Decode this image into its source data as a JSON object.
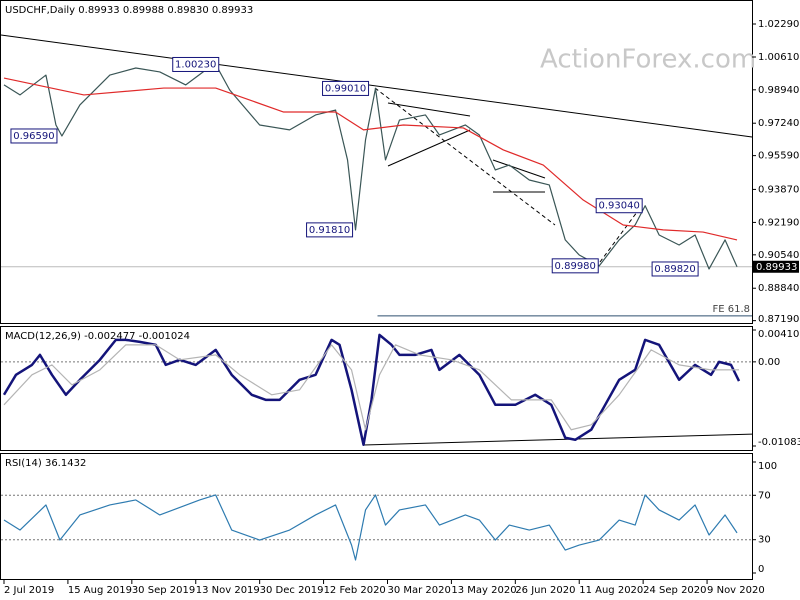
{
  "chart_data": [
    {
      "type": "line",
      "header": "USDCHF,Daily  0.89933 0.89988 0.89830 0.89933",
      "watermark": "ActionForex.com",
      "xlim": [
        -1.5,
        374.5
      ],
      "ylim": [
        0.8707,
        1.0341
      ],
      "yticks": [
        {
          "value": 1.0229,
          "label": "1.02290"
        },
        {
          "value": 1.0061,
          "label": "1.00610"
        },
        {
          "value": 0.9894,
          "label": "0.98940"
        },
        {
          "value": 0.9724,
          "label": "0.97240"
        },
        {
          "value": 0.9559,
          "label": "0.95590"
        },
        {
          "value": 0.9387,
          "label": "0.93870"
        },
        {
          "value": 0.9219,
          "label": "0.92190"
        },
        {
          "value": 0.9054,
          "label": "0.90540"
        },
        {
          "value": 0.8884,
          "label": "0.88840"
        },
        {
          "value": 0.8719,
          "label": "0.87190"
        }
      ],
      "series": [
        {
          "color": "#3a5656",
          "x": [
            0,
            8,
            21,
            26,
            29,
            38,
            53,
            66,
            78,
            91,
            101,
            106,
            113,
            128,
            143,
            156,
            166,
            172,
            176,
            181,
            186,
            191,
            198,
            211,
            218,
            231,
            238,
            246,
            253,
            263,
            273,
            281,
            288,
            298,
            308,
            316,
            321,
            328,
            338,
            346,
            353,
            361,
            367
          ],
          "values": [
            0.9919,
            0.9868,
            0.9969,
            0.9715,
            0.9659,
            0.9817,
            0.9969,
            1.0005,
            0.9985,
            0.9919,
            0.9995,
            1.0023,
            0.9893,
            0.9715,
            0.969,
            0.9766,
            0.9791,
            0.9537,
            0.9181,
            0.9639,
            0.9901,
            0.9537,
            0.974,
            0.9766,
            0.9664,
            0.9715,
            0.9664,
            0.9486,
            0.9511,
            0.9435,
            0.941,
            0.913,
            0.9053,
            0.8998,
            0.913,
            0.9206,
            0.9304,
            0.9155,
            0.9104,
            0.9155,
            0.8982,
            0.913,
            0.89933
          ]
        },
        {
          "color": "#e02a2a",
          "x": [
            0,
            40,
            80,
            106,
            140,
            166,
            180,
            200,
            230,
            250,
            270,
            290,
            310,
            330,
            350,
            367
          ],
          "values": [
            0.9954,
            0.9868,
            0.9903,
            0.9903,
            0.9781,
            0.9781,
            0.969,
            0.9715,
            0.97,
            0.9588,
            0.9511,
            0.9333,
            0.9206,
            0.9181,
            0.917,
            0.913
          ]
        }
      ],
      "trendline": {
        "x": [
          -1.5,
          374.5
        ],
        "values": [
          1.0173,
          0.9654
        ],
        "color": "#000000"
      },
      "fe_line": {
        "label": "FE 61.8",
        "x": [
          187,
          374.5
        ],
        "value": 0.8743,
        "color": "#2f4f6f"
      },
      "last_price": 0.89933,
      "annotations": {
        "x": [
          15,
          96,
          171,
          163,
          308,
          286,
          336
        ],
        "values": [
          0.9659,
          1.0023,
          0.9901,
          0.9181,
          0.9304,
          0.8998,
          0.8982
        ],
        "value_labels": [
          "0.96590",
          "1.00230",
          "0.99010",
          "0.91810",
          "0.93040",
          "0.89980",
          "0.89820"
        ]
      }
    },
    {
      "type": "line",
      "title": "MACD(12,26,9) -0.002477 -0.001024",
      "xlim": [
        -1.5,
        374.5
      ],
      "ylim": [
        -0.010833,
        0.004101
      ],
      "yticks": [
        0.004101,
        {
          "value": 0,
          "label": "0.00"
        },
        -0.010833
      ],
      "series": [
        {
          "color": "#14147a",
          "x": [
            0,
            6,
            14,
            18,
            24,
            31,
            38,
            48,
            56,
            61,
            68,
            76,
            81,
            88,
            96,
            106,
            114,
            124,
            131,
            138,
            148,
            156,
            164,
            168,
            174,
            180,
            184,
            188,
            194,
            198,
            206,
            214,
            218,
            228,
            238,
            246,
            256,
            266,
            274,
            281,
            286,
            294,
            301,
            308,
            316,
            321,
            328,
            338,
            346,
            354,
            358,
            364,
            368
          ],
          "values": [
            -0.00424,
            -0.00167,
            -0.00039,
            0.0009,
            -0.00167,
            -0.00424,
            -0.00231,
            0.00026,
            0.00283,
            0.00283,
            0.00257,
            0.00219,
            -0.00039,
            0.00026,
            -0.00039,
            0.00154,
            -0.00167,
            -0.00424,
            -0.00489,
            -0.00489,
            -0.00231,
            -0.00167,
            0.00283,
            0.00219,
            -0.0036,
            -0.01067,
            -0.00489,
            0.00347,
            0.00219,
            0.0009,
            0.0009,
            0.00154,
            -0.00103,
            0.0009,
            -0.00167,
            -0.00553,
            -0.00553,
            -0.00424,
            -0.00553,
            -0.00977,
            -0.01003,
            -0.00874,
            -0.00553,
            -0.00231,
            -0.00103,
            0.00283,
            0.00219,
            -0.00231,
            -0.00039,
            -0.00167,
            0,
            -0.00039,
            -0.002477
          ]
        },
        {
          "color": "#b4b4b4",
          "x": [
            0,
            14,
            24,
            34,
            48,
            61,
            76,
            88,
            106,
            118,
            134,
            148,
            164,
            174,
            181,
            188,
            196,
            208,
            224,
            238,
            254,
            274,
            284,
            294,
            308,
            324,
            338,
            354,
            368
          ],
          "values": [
            -0.00553,
            -0.00167,
            -0.00039,
            -0.00296,
            -0.00103,
            0.00219,
            0.00219,
            0.00026,
            0.0009,
            -0.00167,
            -0.00424,
            -0.0036,
            0.00219,
            -0.00103,
            -0.00874,
            -0.00167,
            0.00219,
            0.0009,
            0.00026,
            -0.00103,
            -0.00489,
            -0.00489,
            -0.00874,
            -0.00811,
            -0.00424,
            0.00154,
            -0.00039,
            -0.00103,
            -0.001024
          ]
        }
      ],
      "trendline": {
        "x": [
          180,
          374.5
        ],
        "values": [
          -0.0107,
          -0.0093
        ],
        "color": "#000000"
      }
    },
    {
      "type": "line",
      "title": "RSI(14) 36.1432",
      "xlim": [
        -1.5,
        374.5
      ],
      "ylim": [
        0,
        100
      ],
      "yticks": [
        100,
        70,
        30,
        0
      ],
      "xticks": [
        {
          "value": 0,
          "label": "2 Jul 2019"
        },
        {
          "value": 32,
          "label": "15 Aug 2019"
        },
        {
          "value": 64,
          "label": "30 Sep 2019"
        },
        {
          "value": 96,
          "label": "13 Nov 2019"
        },
        {
          "value": 128,
          "label": "30 Dec 2019"
        },
        {
          "value": 160,
          "label": "12 Feb 2020"
        },
        {
          "value": 192,
          "label": "30 Mar 2020"
        },
        {
          "value": 224,
          "label": "13 May 2020"
        },
        {
          "value": 256,
          "label": "26 Jun 2020"
        },
        {
          "value": 288,
          "label": "11 Aug 2020"
        },
        {
          "value": 320,
          "label": "24 Sep 2020"
        },
        {
          "value": 352,
          "label": "9 Nov 2020"
        }
      ],
      "series": [
        {
          "color": "#2e7bb0",
          "x": [
            0,
            8,
            21,
            28,
            38,
            53,
            66,
            78,
            98,
            106,
            114,
            128,
            143,
            156,
            166,
            174,
            176,
            181,
            186,
            191,
            198,
            211,
            218,
            231,
            238,
            246,
            253,
            263,
            273,
            281,
            288,
            298,
            308,
            316,
            321,
            328,
            338,
            346,
            353,
            361,
            367
          ],
          "values": [
            47.7,
            38.7,
            61.3,
            29.7,
            52.3,
            61.3,
            65.8,
            52.3,
            65.8,
            70.3,
            38.7,
            29.7,
            38.7,
            52.3,
            61.3,
            25.2,
            11.7,
            56.8,
            70.3,
            43.2,
            56.8,
            61.3,
            43.2,
            52.3,
            47.7,
            29.7,
            43.2,
            38.7,
            43.2,
            20.7,
            25.2,
            29.7,
            47.7,
            43.2,
            70.3,
            56.8,
            47.7,
            61.3,
            34.2,
            52.3,
            36.1432
          ]
        }
      ]
    }
  ]
}
